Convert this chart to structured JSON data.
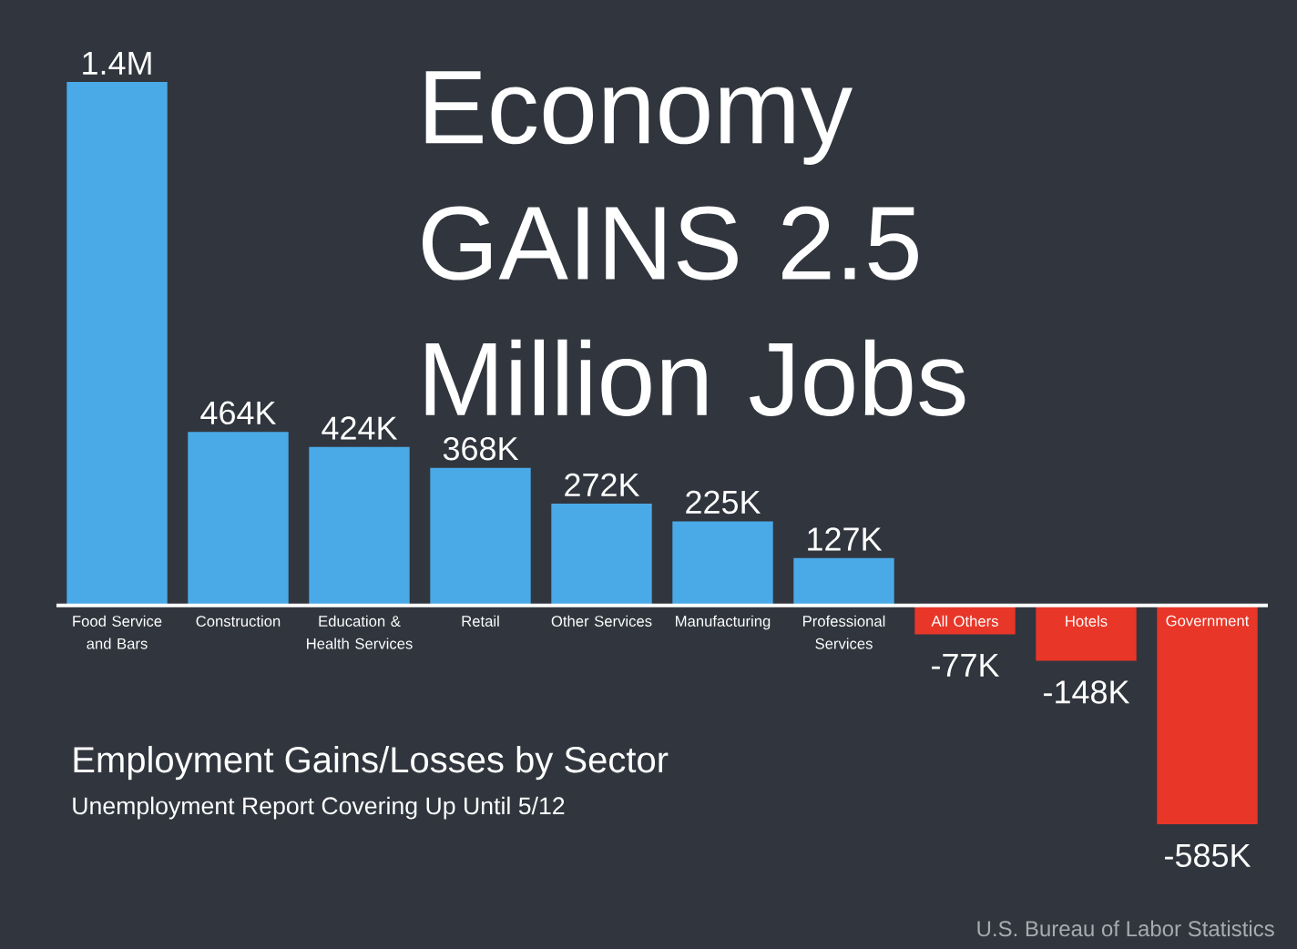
{
  "chart_data": {
    "type": "bar",
    "title": "Economy GAINS 2.5 Million Jobs",
    "subtitle": "Employment Gains/Losses by Sector",
    "annotations": [
      "Unemployment Report Covering Up Until 5/12",
      "U.S. Bureau of Labor Statistics"
    ],
    "categories": [
      "Food Service and Bars",
      "Construction",
      "Education & Health Services",
      "Retail",
      "Other Services",
      "Manufacturing",
      "Professional Services",
      "All Others",
      "Hotels",
      "Government"
    ],
    "values": [
      1400000,
      464000,
      424000,
      368000,
      272000,
      225000,
      127000,
      -77000,
      -148000,
      -585000
    ],
    "value_labels": [
      "1.4M",
      "464K",
      "424K",
      "368K",
      "272K",
      "225K",
      "127K",
      "-77K",
      "-148K",
      "-585K"
    ],
    "colors": [
      "#4aaae8",
      "#4aaae8",
      "#4aaae8",
      "#4aaae8",
      "#4aaae8",
      "#4aaae8",
      "#4aaae8",
      "#e83628",
      "#e83628",
      "#e83628"
    ]
  }
}
